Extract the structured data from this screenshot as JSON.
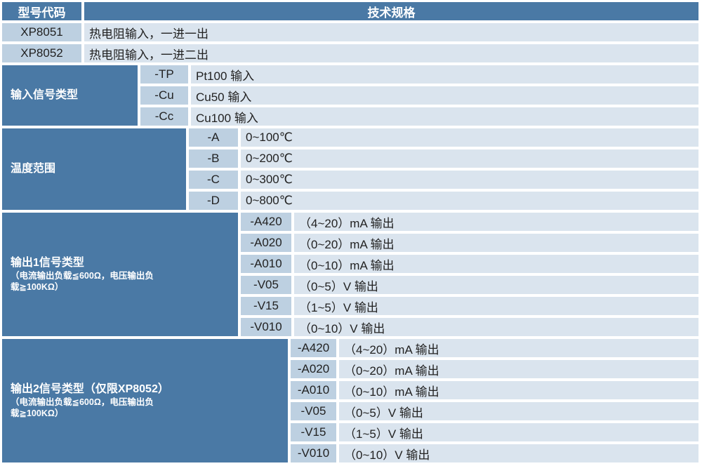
{
  "colors": {
    "dark_blue": "#4a79a5",
    "code_cell_blue": "#bdd0e1",
    "spec_cell_blue": "#dae4ee",
    "gap_white": "#ffffff",
    "text_dark": "#222222",
    "text_white": "#ffffff"
  },
  "table": {
    "header": {
      "model_col": "型号代码",
      "spec_col": "技术规格"
    },
    "model_rows": [
      {
        "code": "XP8051",
        "spec": "热电阻输入，一进一出"
      },
      {
        "code": "XP8052",
        "spec": "热电阻输入，一进二出"
      }
    ],
    "sections": [
      {
        "label": "输入信号类型",
        "rows": [
          {
            "code": "-TP",
            "spec": "Pt100 输入"
          },
          {
            "code": "-Cu",
            "spec": "Cu50 输入"
          },
          {
            "code": "-Cc",
            "spec": "Cu100 输入"
          }
        ]
      },
      {
        "label": "温度范围",
        "rows": [
          {
            "code": "-A",
            "spec": "0~100℃"
          },
          {
            "code": "-B",
            "spec": "0~200℃"
          },
          {
            "code": "-C",
            "spec": "0~300℃"
          },
          {
            "code": "-D",
            "spec": "0~800℃"
          }
        ]
      },
      {
        "label": "输出1信号类型",
        "sublabel": "（电流输出负载≦600Ω，电压输出负载≧100KΩ）",
        "rows": [
          {
            "code": "-A420",
            "spec": "（4~20）mA 输出"
          },
          {
            "code": "-A020",
            "spec": "（0~20）mA 输出"
          },
          {
            "code": "-A010",
            "spec": "（0~10）mA 输出"
          },
          {
            "code": "-V05",
            "spec": "（0~5）V 输出"
          },
          {
            "code": "-V15",
            "spec": "（1~5）V 输出"
          },
          {
            "code": "-V010",
            "spec": "（0~10）V 输出"
          }
        ]
      },
      {
        "label": "输出2信号类型（仅限XP8052）",
        "sublabel": "（电流输出负载≦600Ω，电压输出负载≧100KΩ）",
        "rows": [
          {
            "code": "-A420",
            "spec": "（4~20）mA 输出"
          },
          {
            "code": "-A020",
            "spec": "（0~20）mA 输出"
          },
          {
            "code": "-A010",
            "spec": "（0~10）mA 输出"
          },
          {
            "code": "-V05",
            "spec": "（0~5）V 输出"
          },
          {
            "code": "-V15",
            "spec": "（1~5）V 输出"
          },
          {
            "code": "-V010",
            "spec": "（0~10）V 输出"
          }
        ]
      }
    ]
  }
}
